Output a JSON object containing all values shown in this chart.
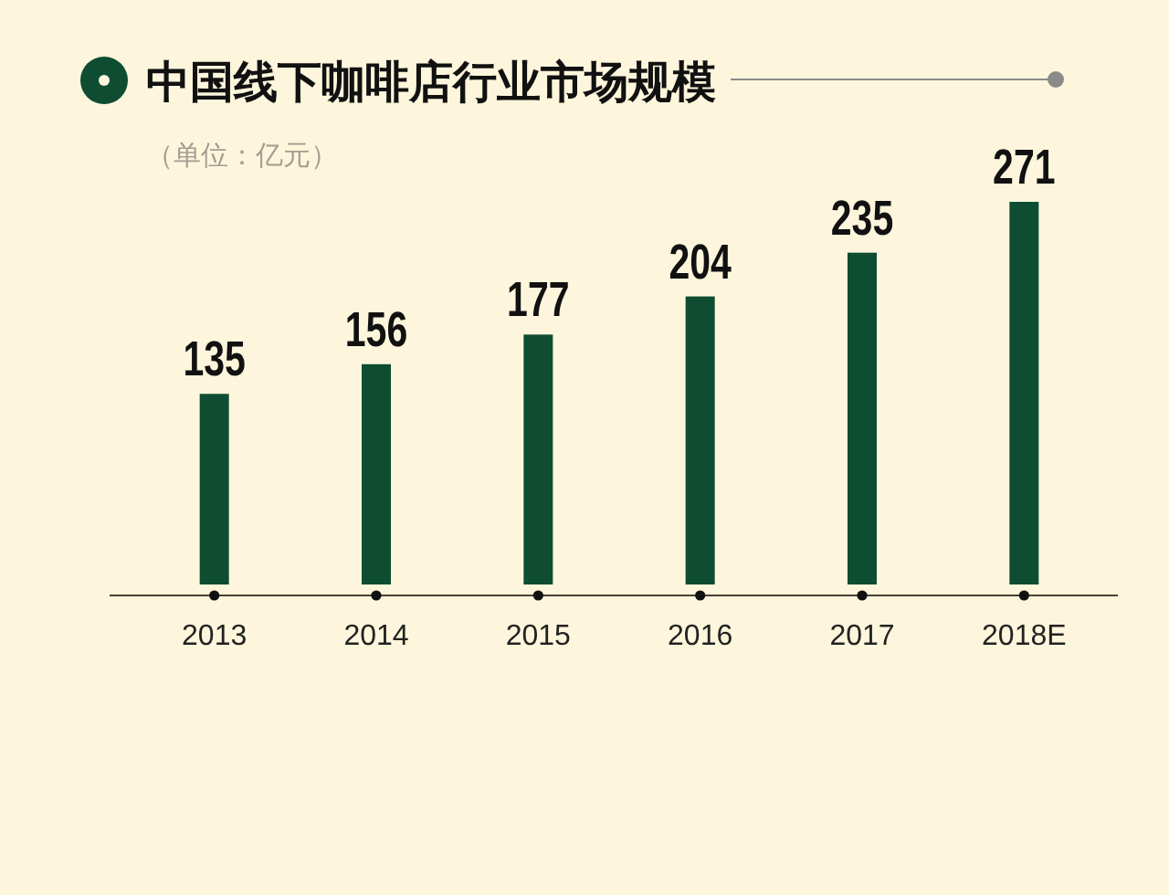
{
  "chart_data": {
    "type": "bar",
    "title": "中国线下咖啡店行业市场规模",
    "subtitle": "（单位：亿元）",
    "categories": [
      "2013",
      "2014",
      "2015",
      "2016",
      "2017",
      "2018E"
    ],
    "values": [
      135,
      156,
      177,
      204,
      235,
      271
    ],
    "color": "#0e4d32",
    "data_labels": true
  }
}
